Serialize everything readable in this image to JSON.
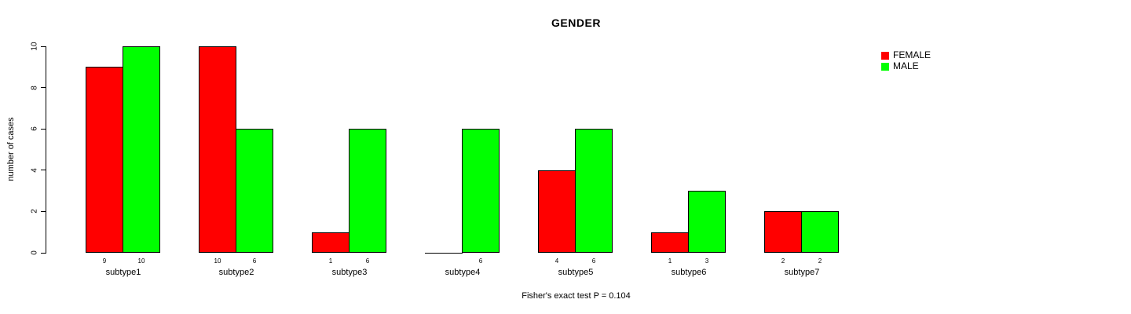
{
  "chart_data": {
    "type": "bar",
    "title": "GENDER",
    "categories": [
      "subtype1",
      "subtype2",
      "subtype3",
      "subtype4",
      "subtype5",
      "subtype6",
      "subtype7"
    ],
    "series": [
      {
        "name": "FEMALE",
        "color": "#ff0000",
        "values": [
          9,
          10,
          1,
          0,
          4,
          1,
          2
        ]
      },
      {
        "name": "MALE",
        "color": "#00ff00",
        "values": [
          10,
          6,
          6,
          6,
          6,
          3,
          2
        ]
      }
    ],
    "xlabel": "",
    "ylabel": "number of cases",
    "ylim": [
      0,
      10
    ],
    "yticks": [
      0,
      2,
      4,
      6,
      8,
      10
    ],
    "grid": false,
    "bar_value_labels": true,
    "legend_position": "top-right",
    "bar_border_color": "#000000",
    "background_color": "#ffffff"
  },
  "footer": "Fisher's exact test P = 0.104"
}
